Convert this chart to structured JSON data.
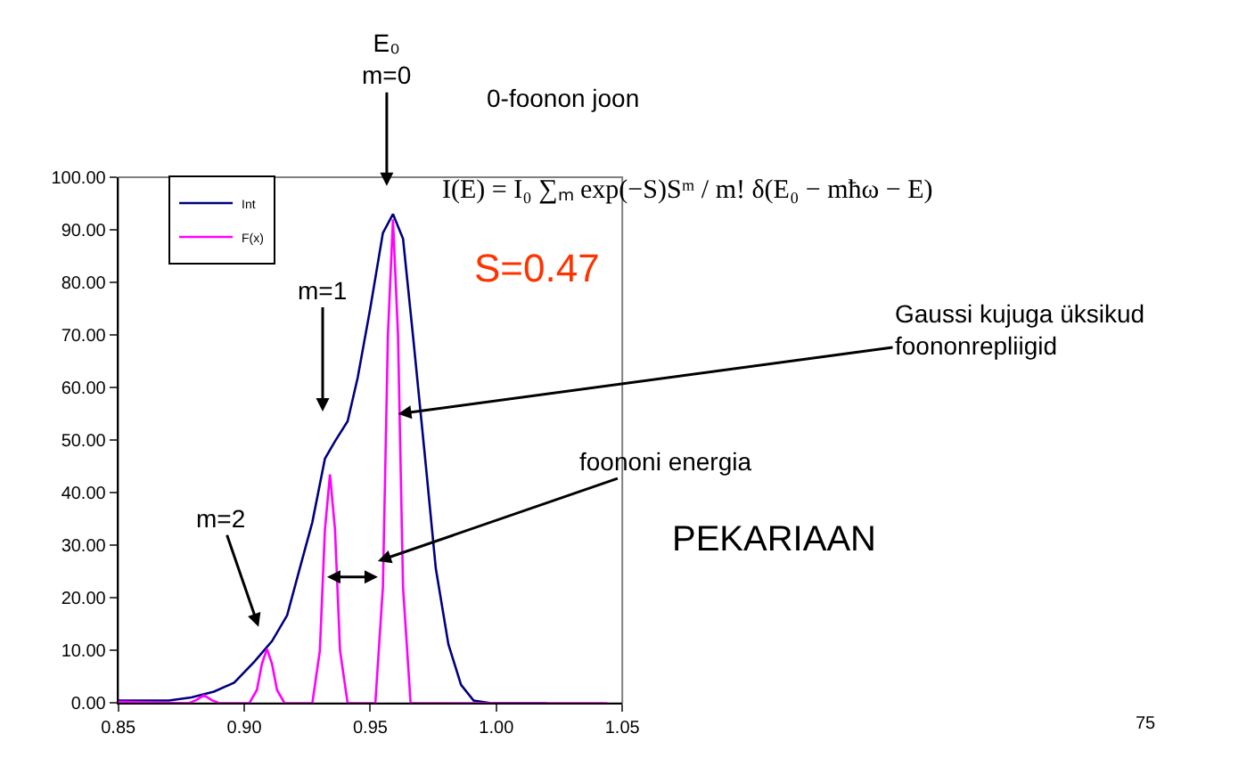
{
  "chart_data": {
    "type": "line",
    "x": [
      0.85,
      0.87,
      0.879,
      0.888,
      0.896,
      0.904,
      0.911,
      0.917,
      0.922,
      0.927,
      0.932,
      0.936,
      0.941,
      0.945,
      0.95,
      0.955,
      0.959,
      0.963,
      0.967,
      0.972,
      0.976,
      0.981,
      0.986,
      0.991,
      0.998,
      1.02
    ],
    "series": [
      {
        "name": "Int",
        "color": "#000080",
        "values": [
          0.5,
          0.5,
          1.1,
          2.2,
          3.9,
          7.9,
          11.8,
          16.7,
          25.6,
          34.4,
          46.5,
          49.8,
          53.6,
          61.9,
          75.1,
          89.4,
          93,
          88.3,
          69.6,
          45.4,
          25.6,
          11.2,
          3.5,
          0.5,
          0,
          0
        ]
      },
      {
        "name": "F(x)",
        "color": "#ff00ff",
        "x": [
          0.85,
          0.878,
          0.881,
          0.884,
          0.887,
          0.89,
          0.902,
          0.905,
          0.907,
          0.909,
          0.911,
          0.913,
          0.916,
          0.927,
          0.93,
          0.932,
          0.934,
          0.936,
          0.938,
          0.941,
          0.952,
          0.955,
          0.957,
          0.959,
          0.961,
          0.963,
          0.966,
          1.044
        ],
        "values": [
          0.3,
          0,
          0.6,
          1.5,
          0.6,
          0,
          0,
          2.5,
          7.5,
          10.3,
          7.5,
          2.5,
          0,
          0,
          10,
          33,
          43.5,
          33,
          10,
          0,
          0,
          22,
          70,
          92,
          70,
          22,
          0,
          0
        ]
      }
    ],
    "xlim": [
      0.85,
      1.05
    ],
    "xticks": [
      {
        "value": 0.85,
        "label": "0.85"
      },
      {
        "value": 0.9,
        "label": "0.90"
      },
      {
        "value": 0.95,
        "label": "0.95"
      },
      {
        "value": 1.0,
        "label": "1.00"
      },
      {
        "value": 1.05,
        "label": "1.05"
      }
    ],
    "ylim": [
      0,
      100
    ],
    "yticks": [
      {
        "value": 0,
        "label": "0.00"
      },
      {
        "value": 10,
        "label": "10.00"
      },
      {
        "value": 20,
        "label": "20.00"
      },
      {
        "value": 30,
        "label": "30.00"
      },
      {
        "value": 40,
        "label": "40.00"
      },
      {
        "value": 50,
        "label": "50.00"
      },
      {
        "value": 60,
        "label": "60.00"
      },
      {
        "value": 70,
        "label": "70.00"
      },
      {
        "value": 80,
        "label": "80.00"
      },
      {
        "value": 90,
        "label": "90.00"
      },
      {
        "value": 100,
        "label": "100.00"
      }
    ],
    "grid": false,
    "legend": "top left",
    "marker": "none",
    "line_style": "solid",
    "annotations": [
      "E₀\nm=0",
      "m=1",
      "m=2",
      {
        "text": "Gaussi kujuga üksikud\nfoononrepliigid",
        "x": 0.961,
        "y": 55
      },
      {
        "text": "foononi energia",
        "x": 0.953,
        "y": 27
      },
      "0-foonon joon",
      "I(E) = I₀ ∑ₘ exp(−S)Sᵐ / m! δ(E₀ − mħω − E)",
      "S=0.47",
      "PEKARIAAN",
      "75"
    ]
  }
}
